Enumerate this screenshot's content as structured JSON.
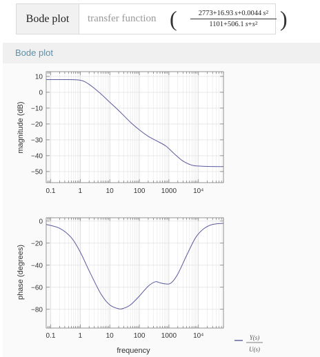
{
  "input": {
    "label": "Bode plot",
    "prefix": "transfer function",
    "numerator": {
      "c0": "2773",
      "c1": "16.93",
      "c2": "0.0044",
      "var": "s",
      "exp": "2"
    },
    "denominator": {
      "c0": "1101",
      "c1": "506.1",
      "var": "s",
      "exp": "2"
    }
  },
  "pod": {
    "title": "Bode plot"
  },
  "legend": {
    "numerator": "Y(s)",
    "denominator": "U(s)"
  },
  "colors": {
    "curve": "#5a5a9e",
    "pod_title": "#5f8fa7"
  },
  "chart_data": [
    {
      "type": "line",
      "ylabel": "magnitude  (dB)",
      "xscale": "log",
      "xlim": [
        0.0707,
        70000
      ],
      "ylim": [
        -57,
        13
      ],
      "xticks": [
        "0.1",
        "1",
        "10",
        "100",
        "1000",
        "10⁴"
      ],
      "yticks": [
        "10",
        "0",
        "−10",
        "−20",
        "−30",
        "−40",
        "−50"
      ],
      "grid": true,
      "series": [
        {
          "x": [
            0.0707,
            0.3,
            1,
            2,
            5,
            10,
            20,
            50,
            100,
            200,
            400,
            800,
            1500,
            3000,
            6000,
            10000,
            20000,
            70000
          ],
          "y": [
            8,
            8,
            7.6,
            5,
            -1,
            -6.3,
            -11.5,
            -18.9,
            -23.7,
            -27.8,
            -30.8,
            -34,
            -38.7,
            -43.4,
            -46,
            -46.5,
            -46.8,
            -46.9
          ]
        }
      ]
    },
    {
      "type": "line",
      "ylabel": "phase  (degrees)",
      "xlabel": "frequency",
      "xscale": "log",
      "xlim": [
        0.0707,
        70000
      ],
      "ylim": [
        -97,
        3
      ],
      "xticks": [
        "0.1",
        "1",
        "10",
        "100",
        "1000",
        "10⁴"
      ],
      "yticks": [
        "0",
        "−20",
        "−40",
        "−60",
        "−80"
      ],
      "grid": true,
      "series": [
        {
          "x": [
            0.0707,
            0.2,
            0.5,
            1,
            2,
            5,
            10,
            20,
            30,
            50,
            100,
            200,
            350,
            500,
            800,
            1200,
            2000,
            4000,
            8000,
            15000,
            30000,
            70000
          ],
          "y": [
            -3,
            -6.5,
            -15,
            -28,
            -45,
            -66,
            -76,
            -79.5,
            -79,
            -76,
            -68,
            -59,
            -55,
            -56,
            -57,
            -56,
            -48,
            -31,
            -15,
            -7,
            -3,
            -2
          ]
        }
      ]
    }
  ]
}
